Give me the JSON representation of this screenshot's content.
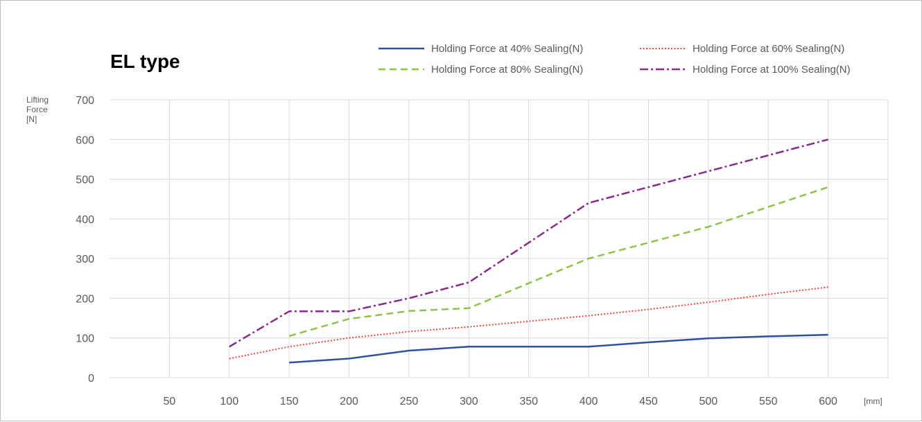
{
  "chart_data": {
    "type": "line",
    "title": "EL type",
    "ylabel": [
      "Lifting",
      "Force",
      "[N]"
    ],
    "xunit": "[mm]",
    "x_ticks": [
      50,
      100,
      150,
      200,
      250,
      300,
      350,
      400,
      450,
      500,
      550,
      600
    ],
    "y_ticks": [
      0,
      100,
      200,
      300,
      400,
      500,
      600,
      700
    ],
    "xlim": [
      0,
      650
    ],
    "ylim": [
      0,
      700
    ],
    "grid": true,
    "legend_position": "top-right",
    "series": [
      {
        "name": "Holding Force at 40% Sealing(N)",
        "color": "#2f4f9f",
        "dash": "solid",
        "x": [
          150,
          200,
          250,
          300,
          350,
          400,
          450,
          500,
          550,
          600
        ],
        "y": [
          38,
          48,
          68,
          78,
          78,
          78,
          89,
          99,
          104,
          108
        ]
      },
      {
        "name": "Holding Force at 60% Sealing(N)",
        "color": "#e8463a",
        "dash": "dotted",
        "x": [
          100,
          150,
          200,
          250,
          300,
          350,
          400,
          450,
          500,
          550,
          600
        ],
        "y": [
          48,
          78,
          100,
          116,
          128,
          142,
          156,
          172,
          190,
          210,
          228
        ]
      },
      {
        "name": "Holding Force at 80% Sealing(N)",
        "color": "#8ec24a",
        "dash": "dashed",
        "x": [
          150,
          200,
          250,
          300,
          350,
          400,
          450,
          500,
          550,
          600
        ],
        "y": [
          105,
          148,
          168,
          175,
          238,
          300,
          340,
          380,
          430,
          480
        ]
      },
      {
        "name": "Holding Force at 100% Sealing(N)",
        "color": "#862a8c",
        "dash": "dashdot",
        "x": [
          100,
          150,
          200,
          250,
          300,
          350,
          400,
          450,
          500,
          550,
          600
        ],
        "y": [
          78,
          167,
          167,
          200,
          240,
          340,
          440,
          480,
          520,
          560,
          600
        ]
      }
    ]
  }
}
